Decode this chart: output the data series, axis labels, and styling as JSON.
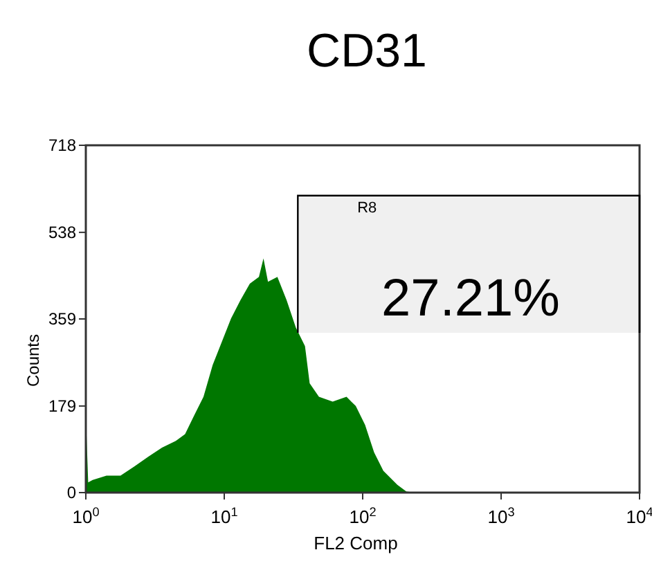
{
  "chart_data": {
    "type": "area",
    "title": "CD31",
    "xlabel": "FL2 Comp",
    "ylabel": "Counts",
    "log": "x",
    "xlim": [
      1,
      10000
    ],
    "xticks": [
      {
        "value": 1,
        "label": "10$^{0}$"
      },
      {
        "value": 10,
        "label": "10$^{1}$"
      },
      {
        "value": 100,
        "label": "10$^{2}$"
      },
      {
        "value": 1000,
        "label": "10$^{3}$"
      },
      {
        "value": 10000,
        "label": "10$^{4}$"
      }
    ],
    "ylim": [
      0,
      718
    ],
    "yticks": [
      0,
      179,
      359,
      538,
      718
    ],
    "series": [
      {
        "color": "#007700",
        "x": [
          1,
          1.0,
          1.04,
          1.12,
          1.41,
          1.78,
          2.24,
          2.82,
          3.55,
          4.47,
          5.21,
          6.07,
          7.08,
          8.25,
          9.62,
          11.2,
          13.1,
          15.3,
          17.8,
          19.2,
          20.7,
          24.2,
          28.2,
          32.9,
          38.3,
          41.4,
          48.3,
          60.7,
          76.4,
          89.1,
          104,
          121,
          141,
          178,
          207,
          242,
          10000
        ],
        "values": [
          0,
          159,
          21,
          26,
          35,
          35,
          54,
          74,
          93,
          107,
          121,
          160,
          198,
          264,
          312,
          360,
          398,
          432,
          446,
          484,
          436,
          446,
          398,
          341,
          303,
          226,
          198,
          188,
          198,
          179,
          140,
          83,
          45,
          16,
          2,
          0,
          0
        ]
      }
    ],
    "bands": [
      {
        "axis": "x",
        "from": 34,
        "to": 10000,
        "label": "R8",
        "color": "#000000"
      }
    ],
    "annotations": [
      "27.21%"
    ],
    "grid": false
  }
}
